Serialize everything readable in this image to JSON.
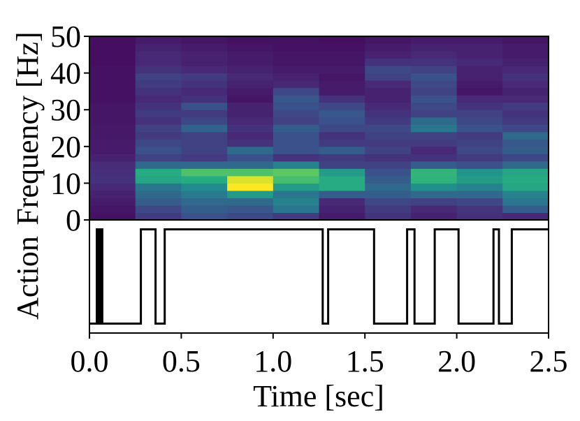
{
  "chart_data": [
    {
      "type": "heatmap",
      "title": "",
      "ylabel": "Frequency [Hz]",
      "xlabel": "",
      "xlim": [
        0,
        2.5
      ],
      "ylim": [
        0,
        50
      ],
      "yticks": [
        "0",
        "10",
        "20",
        "30",
        "40",
        "50"
      ],
      "colormap": "viridis",
      "time_bins": [
        0,
        0.25,
        0.5,
        0.75,
        1.0,
        1.25,
        1.5,
        1.75,
        2.0,
        2.25,
        2.5
      ],
      "freq_bins": [
        0,
        2,
        4,
        6,
        8,
        10,
        12,
        14,
        16,
        18,
        20,
        22,
        24,
        26,
        28,
        30,
        32,
        34,
        36,
        38,
        40,
        42,
        44,
        46,
        48,
        50
      ],
      "values": [
        [
          0.05,
          0.18,
          0.25,
          0.22,
          0.18,
          0.08,
          0.15,
          0.1,
          0.14,
          0.12
        ],
        [
          0.06,
          0.22,
          0.3,
          0.28,
          0.4,
          0.1,
          0.18,
          0.12,
          0.16,
          0.3
        ],
        [
          0.08,
          0.3,
          0.35,
          0.35,
          0.45,
          0.12,
          0.22,
          0.2,
          0.22,
          0.4
        ],
        [
          0.1,
          0.35,
          0.42,
          0.55,
          0.4,
          0.3,
          0.3,
          0.35,
          0.35,
          0.45
        ],
        [
          0.12,
          0.4,
          0.48,
          1.0,
          0.55,
          0.62,
          0.35,
          0.5,
          0.45,
          0.6
        ],
        [
          0.15,
          0.6,
          0.62,
          0.95,
          0.7,
          0.62,
          0.3,
          0.65,
          0.55,
          0.62
        ],
        [
          0.14,
          0.62,
          0.72,
          0.72,
          0.75,
          0.55,
          0.25,
          0.66,
          0.52,
          0.6
        ],
        [
          0.13,
          0.35,
          0.35,
          0.35,
          0.45,
          0.2,
          0.2,
          0.3,
          0.25,
          0.35
        ],
        [
          0.1,
          0.2,
          0.18,
          0.25,
          0.15,
          0.18,
          0.15,
          0.15,
          0.18,
          0.22
        ],
        [
          0.08,
          0.25,
          0.2,
          0.35,
          0.25,
          0.3,
          0.2,
          0.12,
          0.22,
          0.3
        ],
        [
          0.08,
          0.22,
          0.2,
          0.15,
          0.25,
          0.18,
          0.18,
          0.18,
          0.2,
          0.28
        ],
        [
          0.07,
          0.18,
          0.2,
          0.12,
          0.25,
          0.15,
          0.2,
          0.2,
          0.18,
          0.35
        ],
        [
          0.07,
          0.2,
          0.32,
          0.15,
          0.3,
          0.22,
          0.22,
          0.4,
          0.25,
          0.22
        ],
        [
          0.06,
          0.15,
          0.22,
          0.12,
          0.2,
          0.25,
          0.18,
          0.35,
          0.22,
          0.18
        ],
        [
          0.06,
          0.18,
          0.18,
          0.1,
          0.22,
          0.28,
          0.15,
          0.2,
          0.2,
          0.15
        ],
        [
          0.06,
          0.15,
          0.25,
          0.1,
          0.25,
          0.22,
          0.12,
          0.22,
          0.15,
          0.18
        ],
        [
          0.05,
          0.12,
          0.15,
          0.06,
          0.28,
          0.15,
          0.1,
          0.25,
          0.12,
          0.12
        ],
        [
          0.05,
          0.15,
          0.12,
          0.08,
          0.22,
          0.08,
          0.1,
          0.2,
          0.06,
          0.1
        ],
        [
          0.05,
          0.18,
          0.15,
          0.1,
          0.12,
          0.08,
          0.12,
          0.22,
          0.08,
          0.12
        ],
        [
          0.05,
          0.2,
          0.18,
          0.12,
          0.1,
          0.06,
          0.2,
          0.25,
          0.1,
          0.15
        ],
        [
          0.05,
          0.15,
          0.12,
          0.1,
          0.08,
          0.08,
          0.22,
          0.2,
          0.1,
          0.12
        ],
        [
          0.04,
          0.12,
          0.1,
          0.08,
          0.06,
          0.06,
          0.15,
          0.15,
          0.12,
          0.1
        ],
        [
          0.04,
          0.12,
          0.1,
          0.08,
          0.06,
          0.06,
          0.1,
          0.12,
          0.1,
          0.08
        ],
        [
          0.04,
          0.1,
          0.08,
          0.06,
          0.05,
          0.05,
          0.08,
          0.1,
          0.1,
          0.08
        ],
        [
          0.04,
          0.08,
          0.06,
          0.05,
          0.05,
          0.04,
          0.06,
          0.08,
          0.08,
          0.06
        ]
      ]
    },
    {
      "type": "line",
      "title": "",
      "ylabel": "Action",
      "xlabel": "Time [sec]",
      "xlim": [
        0,
        2.5
      ],
      "xticks": [
        "0.0",
        "0.5",
        "1.0",
        "1.5",
        "2.0",
        "2.5"
      ],
      "ylim": [
        -0.1,
        1.1
      ],
      "step": true,
      "x": [
        0.0,
        0.04,
        0.04,
        0.05,
        0.05,
        0.06,
        0.06,
        0.07,
        0.07,
        0.09,
        0.09,
        0.28,
        0.28,
        0.36,
        0.36,
        0.41,
        0.41,
        1.27,
        1.27,
        1.3,
        1.3,
        1.55,
        1.55,
        1.73,
        1.73,
        1.77,
        1.77,
        1.88,
        1.88,
        2.01,
        2.01,
        2.2,
        2.2,
        2.23,
        2.23,
        2.3,
        2.3,
        2.5
      ],
      "y": [
        0,
        0,
        1,
        1,
        0,
        0,
        1,
        1,
        0,
        0,
        0,
        0,
        1,
        1,
        0,
        0,
        1,
        1,
        0,
        0,
        1,
        1,
        0,
        0,
        1,
        1,
        0,
        0,
        1,
        1,
        0,
        0,
        1,
        1,
        0,
        0,
        1,
        1
      ]
    }
  ]
}
